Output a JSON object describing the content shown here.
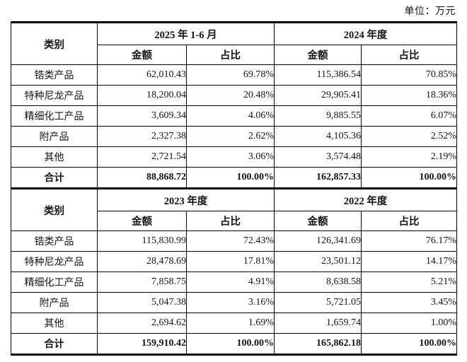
{
  "unit_label": "单位：万元",
  "colors": {
    "text": "#151515",
    "border": "#000000",
    "background": "#ffffff"
  },
  "tables": [
    {
      "category_header": "类别",
      "period_headers": [
        "2025 年 1-6 月",
        "2024 年度"
      ],
      "sub_headers": [
        "金额",
        "占比",
        "金额",
        "占比"
      ],
      "rows": [
        {
          "label": "锆类产品",
          "cells": [
            "62,010.43",
            "69.78%",
            "115,386.54",
            "70.85%"
          ],
          "bold": false
        },
        {
          "label": "特种尼龙产品",
          "cells": [
            "18,200.04",
            "20.48%",
            "29,905.41",
            "18.36%"
          ],
          "bold": false
        },
        {
          "label": "精细化工产品",
          "cells": [
            "3,609.34",
            "4.06%",
            "9,885.55",
            "6.07%"
          ],
          "bold": false
        },
        {
          "label": "附产品",
          "cells": [
            "2,327.38",
            "2.62%",
            "4,105.36",
            "2.52%"
          ],
          "bold": false
        },
        {
          "label": "其他",
          "cells": [
            "2,721.54",
            "3.06%",
            "3,574.48",
            "2.19%"
          ],
          "bold": false
        },
        {
          "label": "合计",
          "cells": [
            "88,868.72",
            "100.00%",
            "162,857.33",
            "100.00%"
          ],
          "bold": true
        }
      ]
    },
    {
      "category_header": "类别",
      "period_headers": [
        "2023 年度",
        "2022 年度"
      ],
      "sub_headers": [
        "金额",
        "占比",
        "金额",
        "占比"
      ],
      "rows": [
        {
          "label": "锆类产品",
          "cells": [
            "115,830.99",
            "72.43%",
            "126,341.69",
            "76.17%"
          ],
          "bold": false
        },
        {
          "label": "特种尼龙产品",
          "cells": [
            "28,478.69",
            "17.81%",
            "23,501.12",
            "14.17%"
          ],
          "bold": false
        },
        {
          "label": "精细化工产品",
          "cells": [
            "7,858.75",
            "4.91%",
            "8,638.58",
            "5.21%"
          ],
          "bold": false
        },
        {
          "label": "附产品",
          "cells": [
            "5,047.38",
            "3.16%",
            "5,721.05",
            "3.45%"
          ],
          "bold": false
        },
        {
          "label": "其他",
          "cells": [
            "2,694.62",
            "1.69%",
            "1,659.74",
            "1.00%"
          ],
          "bold": false
        },
        {
          "label": "合计",
          "cells": [
            "159,910.42",
            "100.00%",
            "165,862.18",
            "100.00%"
          ],
          "bold": true
        }
      ]
    }
  ]
}
